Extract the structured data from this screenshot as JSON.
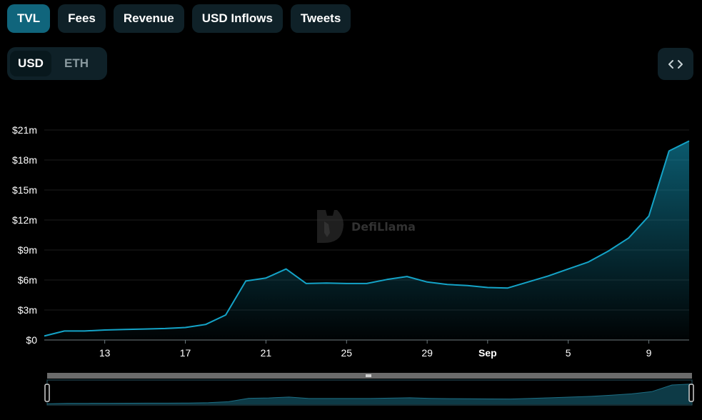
{
  "tabs": [
    {
      "label": "TVL",
      "active": true
    },
    {
      "label": "Fees",
      "active": false
    },
    {
      "label": "Revenue",
      "active": false
    },
    {
      "label": "USD Inflows",
      "active": false
    },
    {
      "label": "Tweets",
      "active": false
    }
  ],
  "denomination": {
    "selected": "USD",
    "other": "ETH"
  },
  "embed_icon": "code-brackets-icon",
  "watermark": {
    "text": "DefiLlama",
    "icon": "llama-logo-icon"
  },
  "colors": {
    "accent": "#14a3c7",
    "active_tab": "#10657c",
    "panel": "#0f2128"
  },
  "chart_data": {
    "type": "area",
    "title": "",
    "xlabel": "",
    "ylabel": "",
    "ylim": [
      0,
      21
    ],
    "y_unit": "$m",
    "y_ticks": [
      "$0",
      "$3m",
      "$6m",
      "$9m",
      "$12m",
      "$15m",
      "$18m",
      "$21m"
    ],
    "x_ticks": [
      "13",
      "17",
      "21",
      "25",
      "29",
      "Sep",
      "5",
      "9"
    ],
    "x": [
      "Aug 10",
      "Aug 11",
      "Aug 12",
      "Aug 13",
      "Aug 14",
      "Aug 15",
      "Aug 16",
      "Aug 17",
      "Aug 18",
      "Aug 19",
      "Aug 20",
      "Aug 21",
      "Aug 22",
      "Aug 23",
      "Aug 24",
      "Aug 25",
      "Aug 26",
      "Aug 27",
      "Aug 28",
      "Aug 29",
      "Aug 30",
      "Aug 31",
      "Sep 1",
      "Sep 2",
      "Sep 3",
      "Sep 4",
      "Sep 5",
      "Sep 6",
      "Sep 7",
      "Sep 8",
      "Sep 9",
      "Sep 10",
      "Sep 11"
    ],
    "series": [
      {
        "values": [
          0.4,
          0.9,
          0.9,
          1.0,
          1.05,
          1.1,
          1.15,
          1.25,
          1.55,
          2.5,
          5.9,
          6.2,
          7.1,
          5.65,
          5.7,
          5.65,
          5.65,
          6.05,
          6.35,
          5.8,
          5.55,
          5.45,
          5.25,
          5.2,
          5.8,
          6.4,
          7.1,
          7.8,
          8.9,
          10.2,
          12.4,
          18.9,
          19.9
        ]
      }
    ],
    "grid": true,
    "legend": "none"
  }
}
